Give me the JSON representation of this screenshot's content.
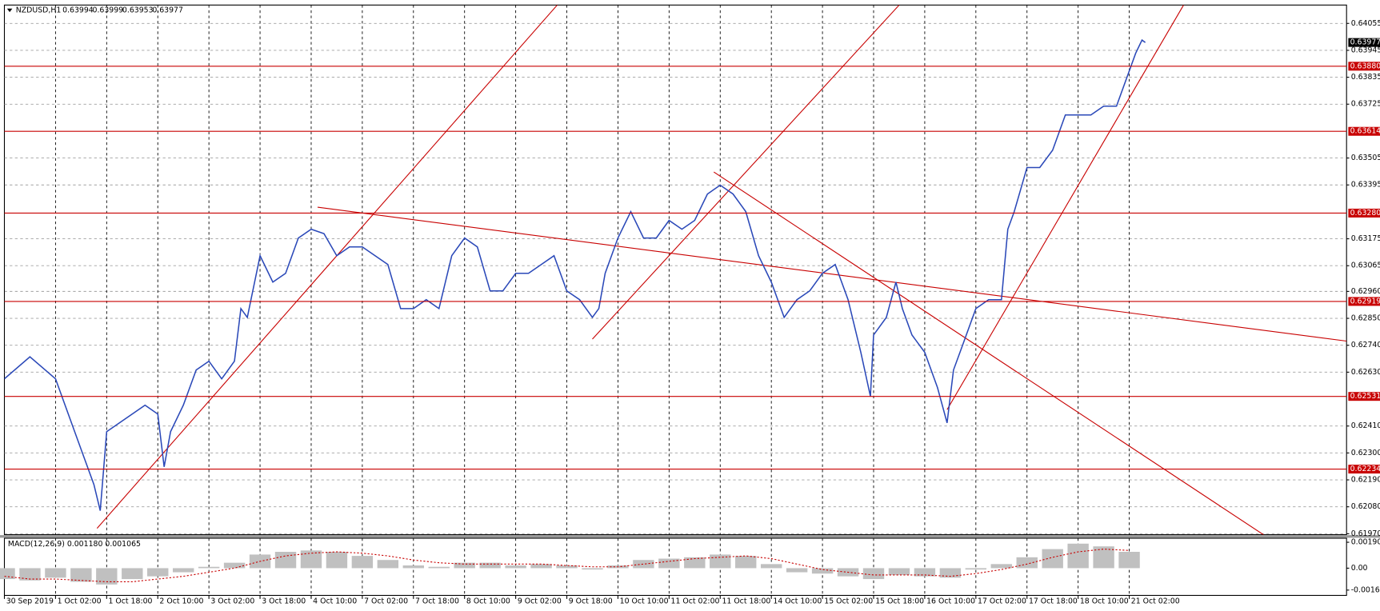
{
  "chart_data": {
    "type": "line",
    "title": "NZDUSD,H1",
    "ohlc": [
      0.63994,
      0.63999,
      0.63953,
      0.63977
    ],
    "color": "#2a48b8",
    "x": [
      0,
      8,
      16,
      20,
      24,
      28,
      30,
      32,
      36,
      40,
      44,
      48,
      50,
      52,
      56,
      60,
      64,
      68,
      72,
      74,
      76,
      80,
      84,
      88,
      92,
      96,
      100,
      104,
      108,
      112,
      116,
      120,
      124,
      128,
      132,
      136,
      140,
      144,
      148,
      152,
      156,
      160,
      164,
      168,
      172,
      176,
      180,
      184,
      186,
      188,
      192,
      196,
      200,
      204,
      208,
      212,
      216,
      220,
      224,
      228,
      232,
      236,
      240,
      244,
      248,
      252,
      256,
      260,
      264,
      268,
      271,
      272,
      276,
      279,
      281,
      284,
      288,
      292,
      295,
      297,
      300,
      304,
      308,
      312,
      314,
      316,
      320,
      324,
      328,
      332,
      336,
      340,
      344,
      348,
      351,
      354,
      356,
      357
    ],
    "values": [
      0.62603,
      0.62693,
      0.62603,
      0.62459,
      0.62315,
      0.62171,
      0.62064,
      0.62387,
      0.62423,
      0.62459,
      0.62495,
      0.62459,
      0.62243,
      0.62387,
      0.62495,
      0.62639,
      0.62675,
      0.62603,
      0.62675,
      0.6289,
      0.62854,
      0.63106,
      0.62998,
      0.63034,
      0.63178,
      0.63214,
      0.63196,
      0.63106,
      0.63142,
      0.63142,
      0.63106,
      0.6307,
      0.6289,
      0.6289,
      0.62926,
      0.6289,
      0.63106,
      0.63178,
      0.63142,
      0.62962,
      0.62962,
      0.63034,
      0.63034,
      0.6307,
      0.63106,
      0.62962,
      0.62926,
      0.62854,
      0.6289,
      0.63034,
      0.63178,
      0.63286,
      0.63178,
      0.63178,
      0.6325,
      0.63214,
      0.6325,
      0.63358,
      0.63394,
      0.63358,
      0.63286,
      0.63106,
      0.62998,
      0.62854,
      0.62926,
      0.62962,
      0.63034,
      0.6307,
      0.62926,
      0.62711,
      0.62531,
      0.62782,
      0.62854,
      0.62998,
      0.6289,
      0.62782,
      0.62711,
      0.62567,
      0.62423,
      0.62639,
      0.62746,
      0.6289,
      0.62926,
      0.62926,
      0.63214,
      0.63286,
      0.63466,
      0.63466,
      0.63537,
      0.63681,
      0.63681,
      0.63681,
      0.63717,
      0.63717,
      0.63825,
      0.63933,
      0.63987,
      0.63977
    ],
    "xlim": [
      0,
      420
    ],
    "xticks": [
      {
        "value": 0,
        "label": "30 Sep 2019"
      },
      {
        "value": 16,
        "label": "1 Oct 02:00"
      },
      {
        "value": 32,
        "label": "1 Oct 18:00"
      },
      {
        "value": 48,
        "label": "2 Oct 10:00"
      },
      {
        "value": 64,
        "label": "3 Oct 02:00"
      },
      {
        "value": 80,
        "label": "3 Oct 18:00"
      },
      {
        "value": 96,
        "label": "4 Oct 10:00"
      },
      {
        "value": 112,
        "label": "7 Oct 02:00"
      },
      {
        "value": 128,
        "label": "7 Oct 18:00"
      },
      {
        "value": 144,
        "label": "8 Oct 10:00"
      },
      {
        "value": 160,
        "label": "9 Oct 02:00"
      },
      {
        "value": 176,
        "label": "9 Oct 18:00"
      },
      {
        "value": 192,
        "label": "10 Oct 10:00"
      },
      {
        "value": 208,
        "label": "11 Oct 02:00"
      },
      {
        "value": 224,
        "label": "11 Oct 18:00"
      },
      {
        "value": 240,
        "label": "14 Oct 10:00"
      },
      {
        "value": 256,
        "label": "15 Oct 02:00"
      },
      {
        "value": 272,
        "label": "15 Oct 18:00"
      },
      {
        "value": 288,
        "label": "16 Oct 10:00"
      },
      {
        "value": 304,
        "label": "17 Oct 02:00"
      },
      {
        "value": 320,
        "label": "17 Oct 18:00"
      },
      {
        "value": 336,
        "label": "18 Oct 10:00"
      },
      {
        "value": 352,
        "label": "21 Oct 02:00"
      }
    ],
    "ylim": [
      0.61966,
      0.6413
    ],
    "yticks": [
      0.64055,
      0.63945,
      0.63835,
      0.63725,
      0.63505,
      0.63395,
      0.63175,
      0.63065,
      {
        "value": 0.6296,
        "label": "0.62960"
      },
      {
        "value": 0.6285,
        "label": "0.62850"
      },
      {
        "value": 0.6274,
        "label": "0.62740"
      },
      {
        "value": 0.6263,
        "label": "0.62630"
      },
      {
        "value": 0.6241,
        "label": "0.62410"
      },
      {
        "value": 0.623,
        "label": "0.62300"
      },
      {
        "value": 0.6219,
        "label": "0.62190"
      },
      {
        "value": 0.6208,
        "label": "0.62080"
      },
      {
        "value": 0.6197,
        "label": "0.61970"
      }
    ],
    "grid": true,
    "levels_color": "#c80000",
    "levels": [
      {
        "value": 0.6388,
        "label": "0.63880"
      },
      0.63614,
      {
        "value": 0.6328,
        "label": "0.63280"
      },
      0.62919,
      0.62531,
      0.62234
    ],
    "trendlines": [
      {
        "x": [
          29,
          173
        ],
        "y": [
          0.61992,
          0.6413
        ]
      },
      {
        "x": [
          184,
          280
        ],
        "y": [
          0.62765,
          0.6413
        ]
      },
      {
        "x": [
          295,
          369
        ],
        "y": [
          0.62477,
          0.6413
        ]
      },
      {
        "x": [
          98,
          420
        ],
        "y": [
          0.63304,
          0.62757
        ]
      },
      {
        "x": [
          222,
          394
        ],
        "y": [
          0.63448,
          0.61966
        ]
      }
    ],
    "macd": {
      "label": "MACD(12,26,9) 0.001180 0.001065",
      "x": [
        0,
        8,
        16,
        24,
        32,
        40,
        48,
        56,
        64,
        72,
        80,
        88,
        96,
        104,
        112,
        120,
        128,
        136,
        144,
        152,
        160,
        168,
        176,
        184,
        192,
        200,
        208,
        216,
        224,
        232,
        240,
        248,
        256,
        264,
        272,
        280,
        288,
        296,
        304,
        312,
        320,
        328,
        336,
        344,
        352
      ],
      "values": [
        -0.0008,
        -0.0009,
        -0.0007,
        -0.001,
        -0.0012,
        -0.0008,
        -0.0006,
        -0.0003,
        0.0001,
        0.0004,
        0.001,
        0.0012,
        0.0013,
        0.0012,
        0.0009,
        0.0006,
        0.0002,
        0.0001,
        0.0004,
        0.0004,
        0.0002,
        0.0003,
        0.0002,
        -0.0001,
        0.0002,
        0.0006,
        0.0007,
        0.0008,
        0.001,
        0.0009,
        0.0003,
        -0.0003,
        -0.0004,
        -0.0006,
        -0.0008,
        -0.0005,
        -0.0006,
        -0.0007,
        -0.0001,
        0.0003,
        0.0008,
        0.0014,
        0.0018,
        0.0016,
        0.0012
      ],
      "signal": [
        -0.0006,
        -0.0008,
        -0.0008,
        -0.0009,
        -0.001,
        -0.001,
        -0.0008,
        -0.0006,
        -0.0003,
        0,
        0.0005,
        0.0009,
        0.0011,
        0.0012,
        0.0011,
        0.0009,
        0.0006,
        0.0004,
        0.0003,
        0.0003,
        0.0003,
        0.0003,
        0.0002,
        0.0001,
        0.0001,
        0.0003,
        0.0005,
        0.0007,
        0.0008,
        0.0009,
        0.0007,
        0.0003,
        -0.0001,
        -0.0003,
        -0.0005,
        -0.0005,
        -0.0005,
        -0.0006,
        -0.0004,
        -0.0001,
        0.0003,
        0.0008,
        0.0012,
        0.0014,
        0.0013
      ],
      "ylim": [
        -0.002,
        0.0022
      ],
      "yticks": [
        0.001902,
        {
          "value": 0,
          "label": "0.00"
        },
        -0.00161
      ]
    }
  }
}
